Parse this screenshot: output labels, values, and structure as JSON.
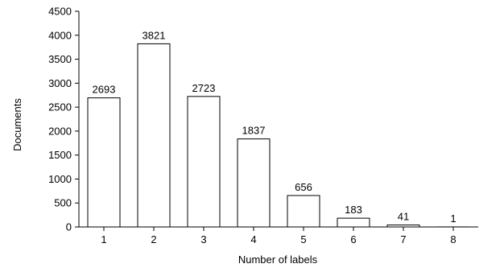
{
  "chart_data": {
    "type": "bar",
    "categories": [
      "1",
      "2",
      "3",
      "4",
      "5",
      "6",
      "7",
      "8"
    ],
    "values": [
      2693,
      3821,
      2723,
      1837,
      656,
      183,
      41,
      1
    ],
    "data_labels": [
      "2693",
      "3821",
      "2723",
      "1837",
      "656",
      "183",
      "41",
      "1"
    ],
    "xlabel": "Number of labels",
    "ylabel": "Documents",
    "ylim": [
      0,
      4500
    ],
    "yticks": [
      0,
      500,
      1000,
      1500,
      2000,
      2500,
      3000,
      3500,
      4000,
      4500
    ],
    "grid": false,
    "legend": "none",
    "colors": {
      "bar_fill": "#ffffff",
      "bar_stroke": "#000000",
      "axis": "#000000"
    }
  }
}
